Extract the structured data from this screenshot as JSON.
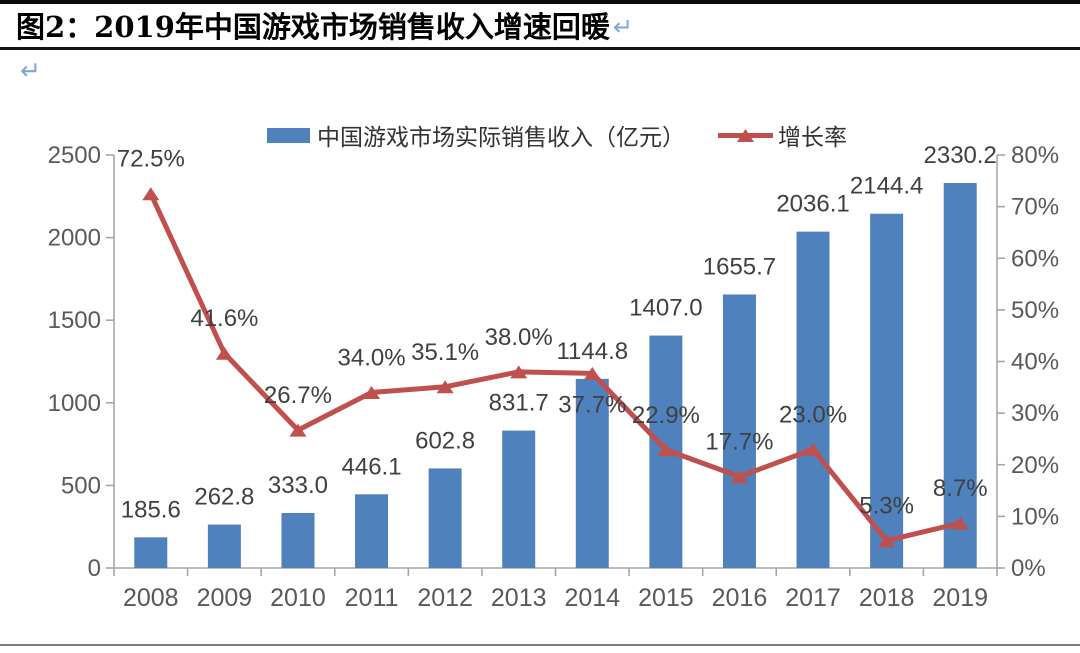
{
  "title": {
    "text": "图2：2019年中国游戏市场销售收入增速回暖",
    "pilcrow": "↵",
    "pilcrow_color": "#7da7d9"
  },
  "chart_data": {
    "type": "bar+line combo",
    "categories": [
      "2008",
      "2009",
      "2010",
      "2011",
      "2012",
      "2013",
      "2014",
      "2015",
      "2016",
      "2017",
      "2018",
      "2019"
    ],
    "series": [
      {
        "name": "中国游戏市场实际销售收入（亿元）",
        "type": "bar",
        "axis": "left",
        "color": "#4f81bd",
        "values": [
          185.6,
          262.8,
          333.0,
          446.1,
          602.8,
          831.7,
          1144.8,
          1407.0,
          1655.7,
          2036.1,
          2144.4,
          2330.2
        ],
        "labels": [
          "185.6",
          "262.8",
          "333.0",
          "446.1",
          "602.8",
          "831.7",
          "1144.8",
          "1407.0",
          "1655.7",
          "2036.1",
          "2144.4",
          "2330.2"
        ]
      },
      {
        "name": "增长率",
        "type": "line",
        "axis": "right",
        "color": "#c0504d",
        "marker": "triangle",
        "values": [
          72.5,
          41.6,
          26.7,
          34.0,
          35.1,
          38.0,
          37.7,
          22.9,
          17.7,
          23.0,
          5.3,
          8.7
        ],
        "labels": [
          "72.5%",
          "41.6%",
          "26.7%",
          "34.0%",
          "35.1%",
          "38.0%",
          "37.7%",
          "22.9%",
          "17.7%",
          "23.0%",
          "5.3%",
          "8.7%"
        ],
        "label_placement": [
          "above",
          "above",
          "above",
          "above",
          "above",
          "above",
          "below",
          "above",
          "above",
          "above",
          "above",
          "above"
        ]
      }
    ],
    "left_axis": {
      "min": 0,
      "max": 2500,
      "step": 500,
      "ticks": [
        "0",
        "500",
        "1000",
        "1500",
        "2000",
        "2500"
      ]
    },
    "right_axis": {
      "min": 0,
      "max": 80,
      "step": 10,
      "ticks": [
        "0%",
        "10%",
        "20%",
        "30%",
        "40%",
        "50%",
        "60%",
        "70%",
        "80%"
      ]
    },
    "legend_position": "top",
    "gridlines": "none",
    "axis_color": "#a6a6a6"
  }
}
